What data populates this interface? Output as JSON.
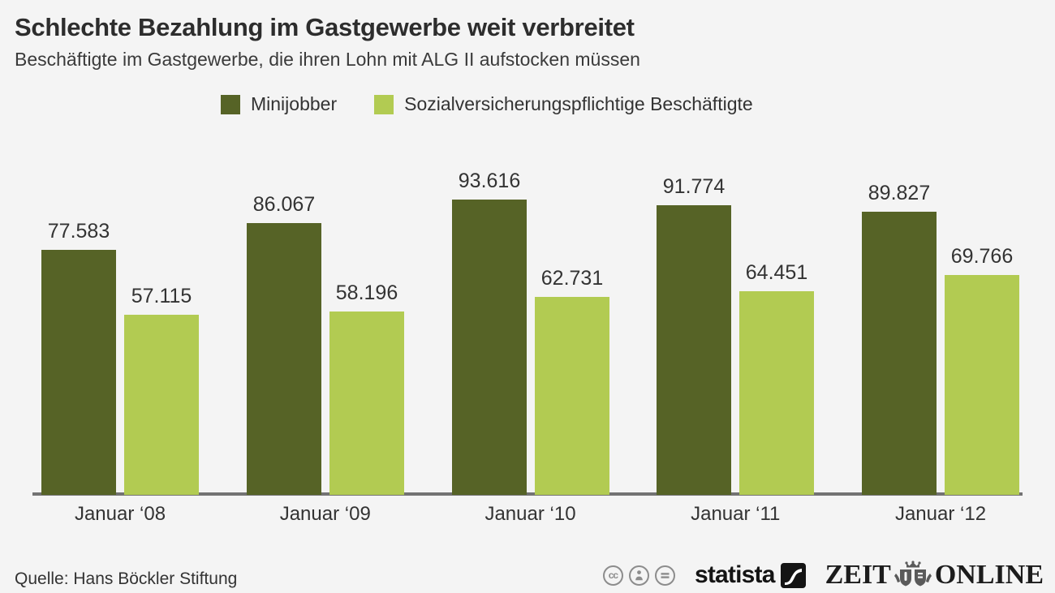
{
  "header": {
    "title": "Schlechte Bezahlung im Gastgewerbe weit verbreitet",
    "subtitle": "Beschäftigte im Gastgewerbe, die ihren Lohn mit ALG II aufstocken müssen"
  },
  "chart_data": {
    "type": "bar",
    "categories": [
      "Januar ‘08",
      "Januar ‘09",
      "Januar ‘10",
      "Januar ‘11",
      "Januar ‘12"
    ],
    "series": [
      {
        "name": "Minijobber",
        "color": "#566326",
        "values": [
          77583,
          86067,
          93616,
          91774,
          89827
        ],
        "labels": [
          "77.583",
          "86.067",
          "93.616",
          "91.774",
          "89.827"
        ]
      },
      {
        "name": "Sozialversicherungspflichtige Beschäftigte",
        "color": "#b2cb52",
        "values": [
          57115,
          58196,
          62731,
          64451,
          69766
        ],
        "labels": [
          "57.115",
          "58.196",
          "62.731",
          "64.451",
          "69.766"
        ]
      }
    ],
    "title": "Schlechte Bezahlung im Gastgewerbe weit verbreitet",
    "subtitle": "Beschäftigte im Gastgewerbe, die ihren Lohn mit ALG II aufstocken müssen",
    "xlabel": "",
    "ylabel": "",
    "ylim": [
      0,
      100000
    ],
    "grid": false,
    "legend_position": "top",
    "value_labels_shown": true,
    "number_format": "German thousands separator (.)"
  },
  "footer": {
    "source": "Quelle: Hans Böckler Stiftung",
    "license_icons": [
      "cc-icon",
      "attribution-icon",
      "equals-icon"
    ],
    "statista_logo_text": "statista",
    "zeit_logo_text_left": "ZEIT",
    "zeit_logo_text_right": "ONLINE"
  },
  "colors": {
    "background": "#f4f4f4",
    "title_text": "#2d2d2d",
    "body_text": "#333333",
    "axis_line": "#737373",
    "series_minijobber": "#566326",
    "series_svb": "#b2cb52",
    "license_gray": "#8c8c8c",
    "logo_black": "#141414"
  }
}
